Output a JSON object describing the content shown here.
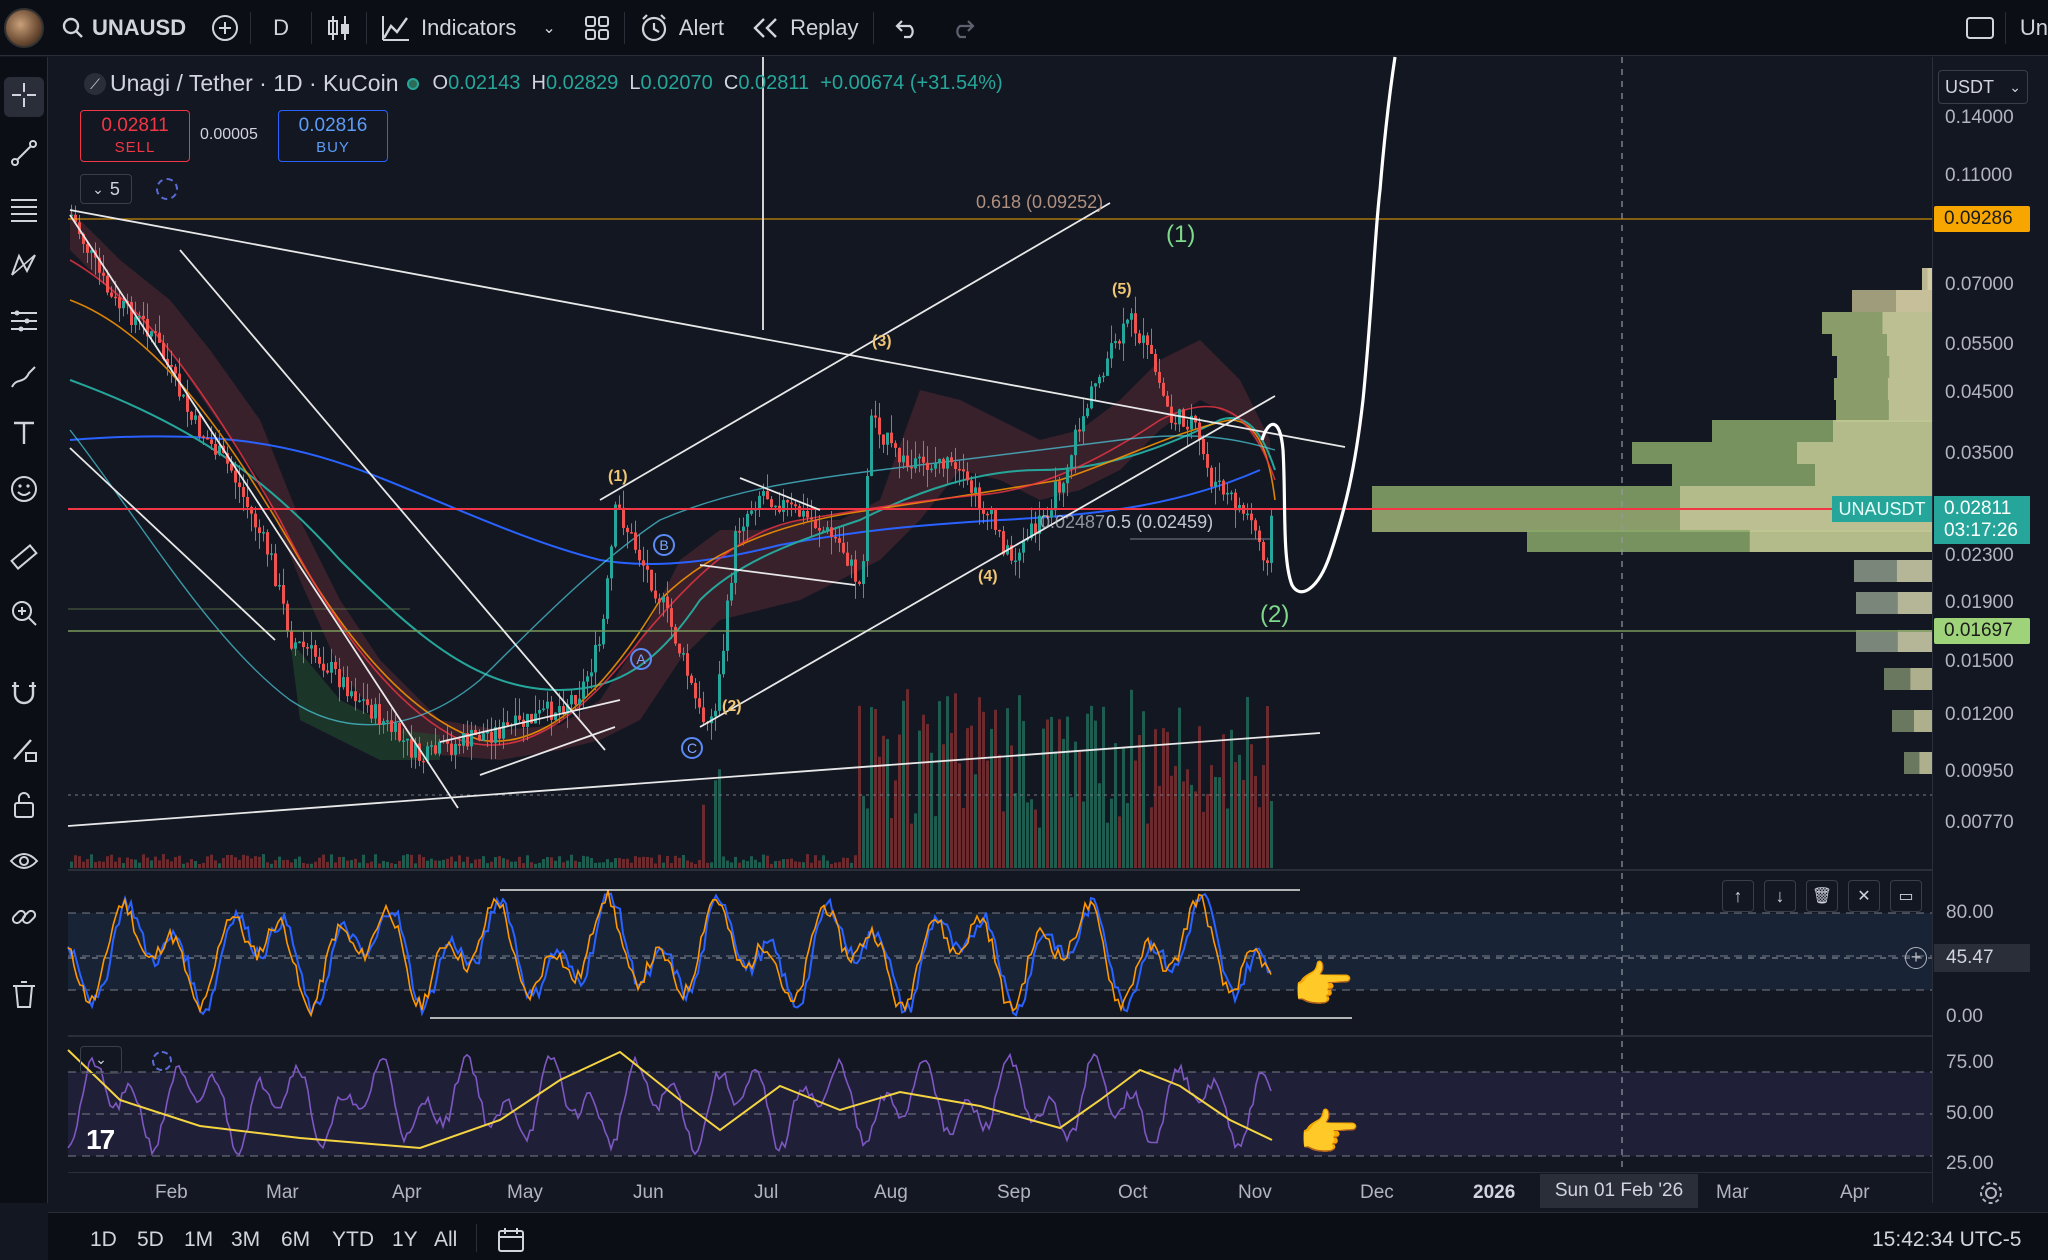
{
  "topbar": {
    "symbol": "UNAUSD",
    "interval": "D",
    "indicators_label": "Indicators",
    "alert_label": "Alert",
    "replay_label": "Replay",
    "right_cut_text": "Un"
  },
  "legend": {
    "title": "Unagi / Tether · 1D · KuCoin",
    "open_key": "O",
    "open": "0.02143",
    "high_key": "H",
    "high": "0.02829",
    "low_key": "L",
    "low": "0.02070",
    "close_key": "C",
    "close": "0.02811",
    "change": "+0.00674 (+31.54%)"
  },
  "trade": {
    "sell_price": "0.02811",
    "sell_label": "SELL",
    "spread": "0.00005",
    "buy_price": "0.02816",
    "buy_label": "BUY"
  },
  "indicator_count": "5",
  "currency_select": "USDT",
  "price_axis": {
    "ticks": [
      "0.14000",
      "0.11000",
      "0.07000",
      "0.05500",
      "0.04500",
      "0.03500",
      "0.02300",
      "0.01900",
      "0.01500",
      "0.01200",
      "0.00950",
      "0.00770"
    ],
    "fib_label_price": "0.09286",
    "symbol_label": "UNAUSDT",
    "last_price": "0.02811",
    "countdown": "03:17:26",
    "support_price": "0.01697"
  },
  "annotations": {
    "fib618": "0.618 (0.09252)",
    "fib05": "0.5 (0.02459)",
    "fib_partial": "0.02487",
    "wave_labels": [
      "(1)",
      "(2)",
      "(3)",
      "(4)",
      "(5)"
    ],
    "big_wave_1": "(1)",
    "big_wave_2": "(2)",
    "abc": [
      "A",
      "B",
      "C"
    ]
  },
  "osc1_axis": {
    "ticks": [
      "80.00",
      "0.00"
    ],
    "crosshair_value": "45.47"
  },
  "osc2_axis": {
    "ticks": [
      "75.00",
      "50.00",
      "25.00"
    ]
  },
  "time_axis": {
    "months": [
      "Feb",
      "Mar",
      "Apr",
      "May",
      "Jun",
      "Jul",
      "Aug",
      "Sep",
      "Oct",
      "Nov",
      "Dec",
      "2026",
      "Mar",
      "Apr"
    ],
    "crosshair_date": "Sun 01 Feb '26"
  },
  "bottombar": {
    "ranges": [
      "1D",
      "5D",
      "1M",
      "3M",
      "6M",
      "YTD",
      "1Y",
      "All"
    ],
    "clock": "15:42:34 UTC-5"
  },
  "colors": {
    "background": "#131722",
    "up": "#26a69a",
    "down": "#ef5350",
    "price_line": "#f23645",
    "fib_line": "#f7a600"
  },
  "icons": [
    "search-icon",
    "plus-circle-icon",
    "candles-icon",
    "indicators-icon",
    "layout-icon",
    "alert-icon",
    "replay-icon",
    "undo-icon",
    "redo-icon",
    "fullscreen-icon",
    "crosshair-icon",
    "trendline-icon",
    "fib-icon",
    "pattern-icon",
    "forecast-icon",
    "brush-icon",
    "text-icon",
    "emoji-icon",
    "ruler-icon",
    "zoom-in-icon",
    "magnet-icon",
    "pencil-lock-icon",
    "lock-icon",
    "eye-icon",
    "link-icon",
    "trash-icon",
    "settings-icon",
    "calendar-icon",
    "hand-pointer-icon"
  ]
}
